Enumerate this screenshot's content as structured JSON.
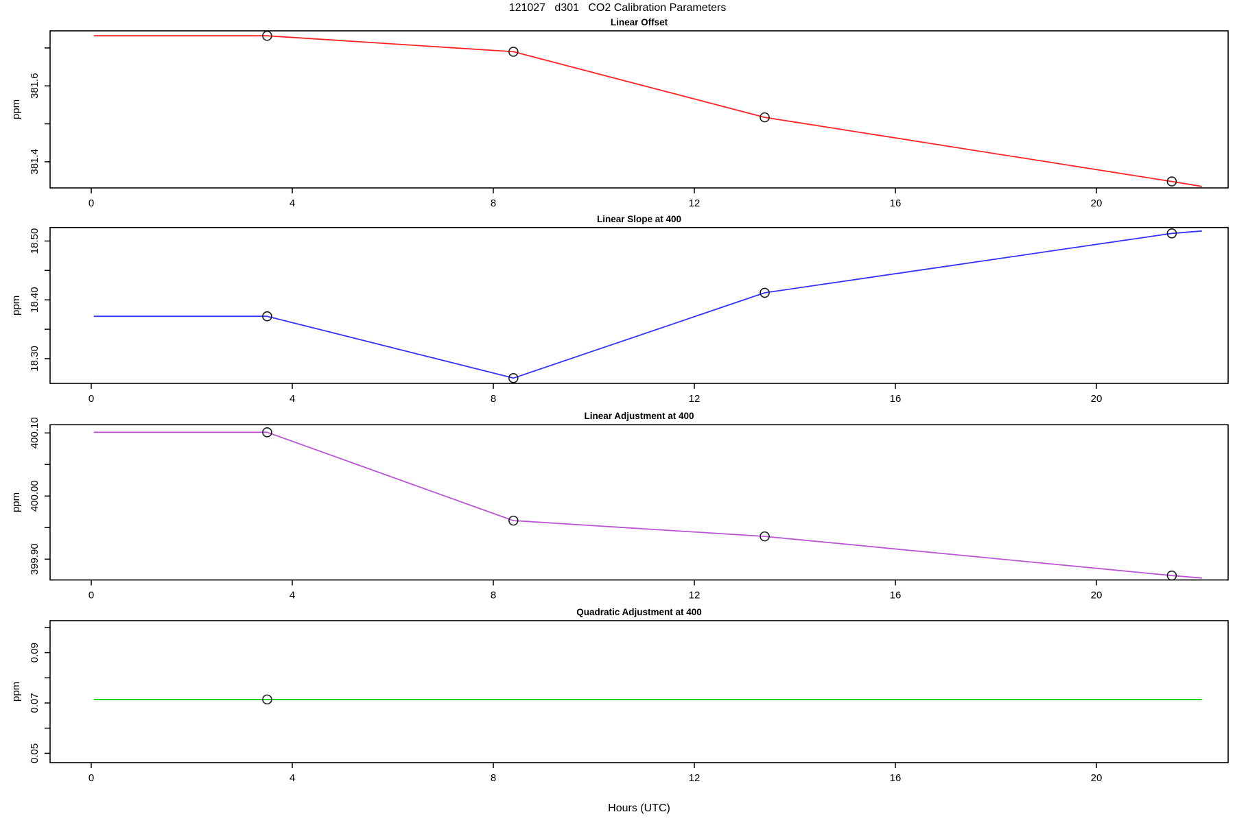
{
  "header": {
    "title": "121027   d301   CO2 Calibration Parameters"
  },
  "footer": {
    "xlabel": "Hours (UTC)"
  },
  "chart_data": [
    {
      "type": "line",
      "title": "Linear Offset",
      "ylabel": "ppm",
      "color": "#ff2222",
      "xlabel_ticks": [
        "0",
        "4",
        "8",
        "12",
        "16",
        "20"
      ],
      "xticks": [
        0,
        4,
        8,
        12,
        16,
        20
      ],
      "xlim": [
        -0.82,
        22.62
      ],
      "ylim": [
        381.331,
        381.745
      ],
      "yticks": [
        {
          "v": 381.4,
          "label": "381.4"
        },
        {
          "v": 381.5,
          "label": ""
        },
        {
          "v": 381.6,
          "label": "381.6"
        },
        {
          "v": 381.7,
          "label": ""
        }
      ],
      "line": [
        [
          0.05,
          381.732
        ],
        [
          3.5,
          381.732
        ],
        [
          8.4,
          381.69
        ],
        [
          13.4,
          381.517
        ],
        [
          21.5,
          381.348
        ],
        [
          22.1,
          381.335
        ]
      ],
      "points": [
        [
          3.5,
          381.732
        ],
        [
          8.4,
          381.69
        ],
        [
          13.4,
          381.517
        ],
        [
          21.5,
          381.348
        ]
      ]
    },
    {
      "type": "line",
      "title": "Linear Slope at 400",
      "ylabel": "ppm",
      "color": "#3333ff",
      "xlabel_ticks": [
        "0",
        "4",
        "8",
        "12",
        "16",
        "20"
      ],
      "xticks": [
        0,
        4,
        8,
        12,
        16,
        20
      ],
      "xlim": [
        -0.82,
        22.62
      ],
      "ylim": [
        18.258,
        18.523
      ],
      "yticks": [
        {
          "v": 18.3,
          "label": "18.30"
        },
        {
          "v": 18.35,
          "label": ""
        },
        {
          "v": 18.4,
          "label": "18.40"
        },
        {
          "v": 18.45,
          "label": ""
        },
        {
          "v": 18.5,
          "label": "18.50"
        }
      ],
      "line": [
        [
          0.05,
          18.372
        ],
        [
          3.5,
          18.372
        ],
        [
          8.4,
          18.267
        ],
        [
          13.4,
          18.412
        ],
        [
          21.5,
          18.513
        ],
        [
          22.1,
          18.517
        ]
      ],
      "points": [
        [
          3.5,
          18.372
        ],
        [
          8.4,
          18.267
        ],
        [
          13.4,
          18.412
        ],
        [
          21.5,
          18.513
        ]
      ]
    },
    {
      "type": "line",
      "title": "Linear Adjustment at 400",
      "ylabel": "ppm",
      "color": "#ba55d3",
      "xlabel_ticks": [
        "0",
        "4",
        "8",
        "12",
        "16",
        "20"
      ],
      "xticks": [
        0,
        4,
        8,
        12,
        16,
        20
      ],
      "xlim": [
        -0.82,
        22.62
      ],
      "ylim": [
        399.867,
        400.113
      ],
      "yticks": [
        {
          "v": 399.9,
          "label": "399.90"
        },
        {
          "v": 399.95,
          "label": ""
        },
        {
          "v": 400.0,
          "label": "400.00"
        },
        {
          "v": 400.05,
          "label": ""
        },
        {
          "v": 400.1,
          "label": "400.10"
        }
      ],
      "line": [
        [
          0.05,
          400.101
        ],
        [
          3.5,
          400.101
        ],
        [
          8.4,
          399.961
        ],
        [
          13.4,
          399.936
        ],
        [
          21.5,
          399.874
        ],
        [
          22.1,
          399.87
        ]
      ],
      "points": [
        [
          3.5,
          400.101
        ],
        [
          8.4,
          399.961
        ],
        [
          13.4,
          399.936
        ],
        [
          21.5,
          399.874
        ]
      ]
    },
    {
      "type": "line",
      "title": "Quadratic Adjustment at 400",
      "ylabel": "ppm",
      "color": "#00d400",
      "xlabel_ticks": [
        "0",
        "4",
        "8",
        "12",
        "16",
        "20"
      ],
      "xticks": [
        0,
        4,
        8,
        12,
        16,
        20
      ],
      "xlim": [
        -0.82,
        22.62
      ],
      "ylim": [
        0.0463,
        0.1027
      ],
      "yticks": [
        {
          "v": 0.05,
          "label": "0.05"
        },
        {
          "v": 0.06,
          "label": ""
        },
        {
          "v": 0.07,
          "label": "0.07"
        },
        {
          "v": 0.08,
          "label": ""
        },
        {
          "v": 0.09,
          "label": "0.09"
        },
        {
          "v": 0.1,
          "label": ""
        }
      ],
      "line": [
        [
          0.05,
          0.0714
        ],
        [
          3.5,
          0.0714
        ],
        [
          22.1,
          0.0714
        ]
      ],
      "points": [
        [
          3.5,
          0.0714
        ]
      ]
    }
  ]
}
